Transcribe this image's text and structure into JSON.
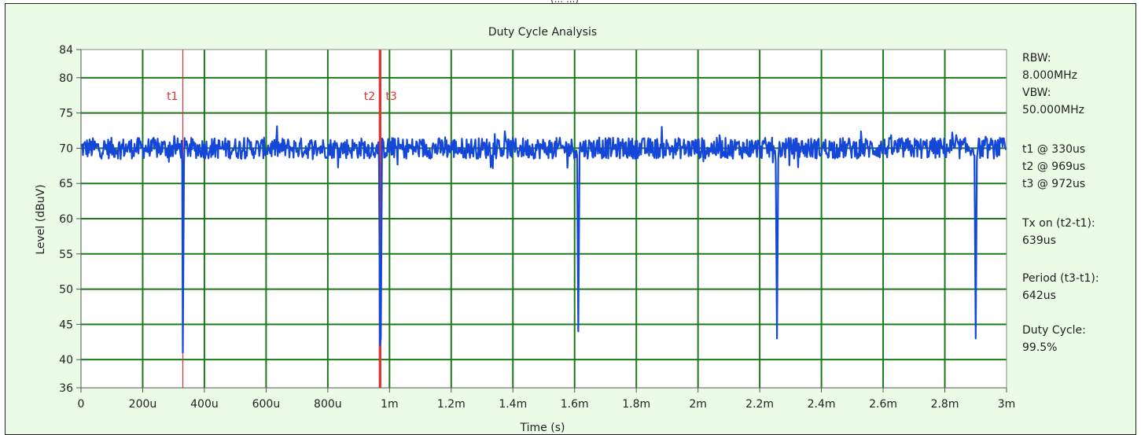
{
  "header_fragment": "(... ...)",
  "chart_data": {
    "type": "line",
    "title": "Duty Cycle Analysis",
    "xlabel": "Time (s)",
    "ylabel": "Level (dBuV)",
    "xlim": [
      0,
      3000
    ],
    "ylim": [
      36,
      84
    ],
    "x_unit": "us",
    "x_ticks": [
      {
        "v": 0,
        "label": "0"
      },
      {
        "v": 200,
        "label": "200u"
      },
      {
        "v": 400,
        "label": "400u"
      },
      {
        "v": 600,
        "label": "600u"
      },
      {
        "v": 800,
        "label": "800u"
      },
      {
        "v": 1000,
        "label": "1m"
      },
      {
        "v": 1200,
        "label": "1.2m"
      },
      {
        "v": 1400,
        "label": "1.4m"
      },
      {
        "v": 1600,
        "label": "1.6m"
      },
      {
        "v": 1800,
        "label": "1.8m"
      },
      {
        "v": 2000,
        "label": "2m"
      },
      {
        "v": 2200,
        "label": "2.2m"
      },
      {
        "v": 2400,
        "label": "2.4m"
      },
      {
        "v": 2600,
        "label": "2.6m"
      },
      {
        "v": 2800,
        "label": "2.8m"
      },
      {
        "v": 3000,
        "label": "3m"
      }
    ],
    "y_ticks": [
      {
        "v": 36,
        "label": "36"
      },
      {
        "v": 40,
        "label": "40"
      },
      {
        "v": 45,
        "label": "45"
      },
      {
        "v": 50,
        "label": "50"
      },
      {
        "v": 55,
        "label": "55"
      },
      {
        "v": 60,
        "label": "60"
      },
      {
        "v": 65,
        "label": "65"
      },
      {
        "v": 70,
        "label": "70"
      },
      {
        "v": 75,
        "label": "75"
      },
      {
        "v": 80,
        "label": "80"
      },
      {
        "v": 84,
        "label": "84"
      }
    ],
    "grid": true,
    "grid_color": "#1a7a1a",
    "series": [
      {
        "color": "#1447d8",
        "baseline_dbuv": 70,
        "noise_dbuv": 1.5,
        "x": [
          0,
          30,
          60,
          90,
          120,
          150,
          180,
          210,
          240,
          270,
          300,
          320,
          328,
          330,
          334,
          340,
          355,
          380,
          420,
          470,
          520,
          560,
          600,
          640,
          680,
          720,
          760,
          800,
          840,
          880,
          920,
          950,
          966,
          969,
          972,
          976,
          985,
          1000,
          1050,
          1100,
          1150,
          1200,
          1250,
          1300,
          1350,
          1400,
          1450,
          1500,
          1550,
          1590,
          1608,
          1612,
          1616,
          1625,
          1640,
          1680,
          1720,
          1760,
          1800,
          1850,
          1900,
          1950,
          2000,
          2050,
          2100,
          2150,
          2200,
          2240,
          2252,
          2256,
          2260,
          2268,
          2285,
          2320,
          2360,
          2400,
          2450,
          2500,
          2550,
          2600,
          2650,
          2700,
          2750,
          2800,
          2850,
          2884,
          2896,
          2900,
          2904,
          2912,
          2930,
          2970,
          3000
        ],
        "y": [
          70,
          69,
          71,
          70,
          70,
          71,
          70,
          70,
          70,
          73,
          70,
          69,
          68,
          41,
          66,
          67,
          68,
          70,
          70,
          71,
          70,
          70,
          71,
          70,
          70,
          70,
          71,
          70,
          70,
          71,
          70,
          69,
          68,
          42,
          43,
          67,
          68,
          70,
          70,
          71,
          70,
          70,
          71,
          70,
          70,
          70,
          71,
          70,
          70,
          70,
          69,
          44,
          66,
          67,
          69,
          70,
          70,
          71,
          70,
          70,
          70,
          71,
          70,
          70,
          71,
          70,
          70,
          69,
          68,
          43,
          66,
          67,
          68,
          70,
          71,
          71,
          70,
          70,
          71,
          70,
          70,
          70,
          71,
          70,
          70,
          70,
          69,
          43,
          66,
          67,
          69,
          70,
          70
        ]
      }
    ],
    "markers": [
      {
        "label": "t1",
        "x": 330,
        "color": "#e53030",
        "width": "thin"
      },
      {
        "label": "t2",
        "x": 969,
        "color": "#e53030",
        "width": "thick"
      },
      {
        "label": "t3",
        "x": 972,
        "color": "#e53030",
        "width": "thin"
      }
    ]
  },
  "info_panel": [
    {
      "label": "RBW:",
      "value": "8.000MHz"
    },
    {
      "label": "VBW:",
      "value": "50.000MHz"
    },
    {
      "label": "t1 @ 330us",
      "value": "t2 @ 969us",
      "extra": "t3 @ 972us"
    },
    {
      "label": "Tx on (t2-t1):",
      "value": "639us"
    },
    {
      "label": "Period (t3-t1):",
      "value": "642us"
    },
    {
      "label": "Duty Cycle:",
      "value": "99.5%"
    }
  ]
}
